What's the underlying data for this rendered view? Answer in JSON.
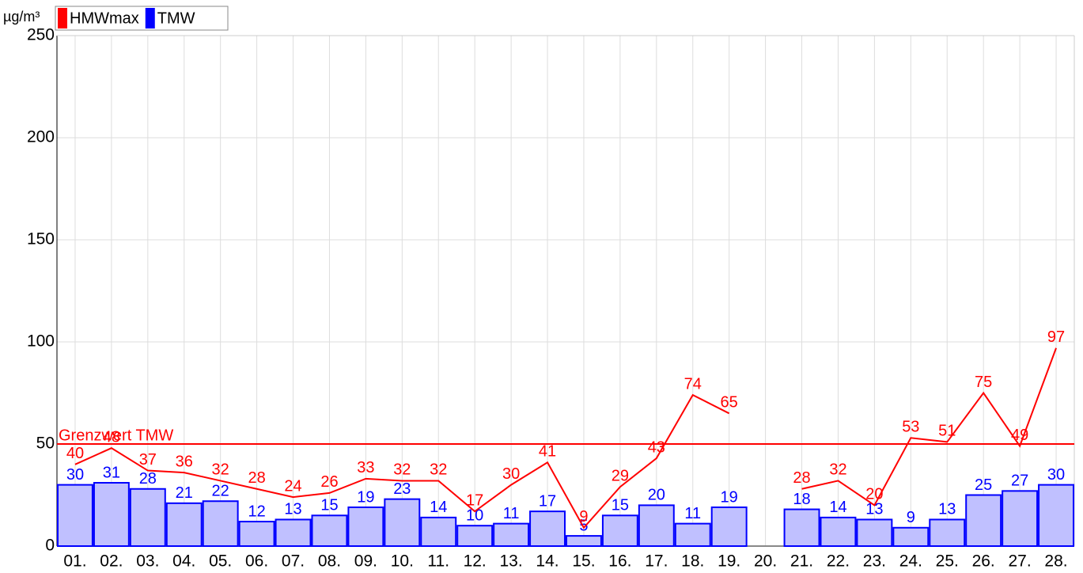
{
  "chart_data": {
    "type": "bar",
    "unit": "µg/m³",
    "categories": [
      "01.",
      "02.",
      "03.",
      "04.",
      "05.",
      "06.",
      "07.",
      "08.",
      "09.",
      "10.",
      "11.",
      "12.",
      "13.",
      "14.",
      "15.",
      "16.",
      "17.",
      "18.",
      "19.",
      "20.",
      "21.",
      "22.",
      "23.",
      "24.",
      "25.",
      "26.",
      "27.",
      "28."
    ],
    "series": [
      {
        "name": "HMWmax",
        "type": "line",
        "color": "#ff0000",
        "values": [
          40,
          48,
          37,
          36,
          32,
          28,
          24,
          26,
          33,
          32,
          32,
          17,
          30,
          41,
          9,
          29,
          43,
          74,
          65,
          null,
          28,
          32,
          20,
          53,
          51,
          75,
          49,
          97
        ]
      },
      {
        "name": "TMW",
        "type": "bar",
        "color": "#0000ff",
        "fill": "#c0c0ff",
        "values": [
          30,
          31,
          28,
          21,
          22,
          12,
          13,
          15,
          19,
          23,
          14,
          10,
          11,
          17,
          5,
          15,
          20,
          11,
          19,
          null,
          18,
          14,
          13,
          9,
          13,
          25,
          27,
          30
        ]
      }
    ],
    "threshold": {
      "value": 50,
      "label": "Grenzwert TMW",
      "color": "#ff0000"
    },
    "ylim": [
      0,
      250
    ],
    "yticks": [
      0,
      50,
      100,
      150,
      200,
      250
    ],
    "grid": true
  }
}
